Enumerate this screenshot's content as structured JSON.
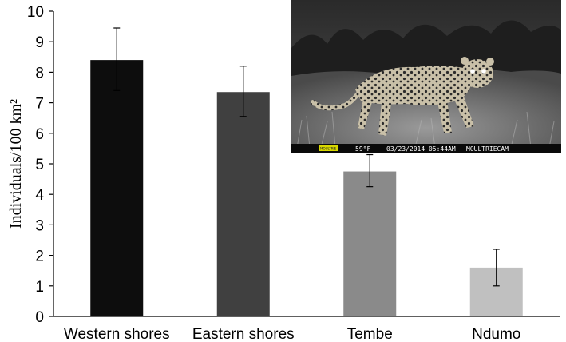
{
  "chart_data": {
    "type": "bar",
    "categories": [
      "Western shores",
      "Eastern shores",
      "Tembe",
      "Ndumo"
    ],
    "values": [
      8.4,
      7.35,
      4.75,
      1.6
    ],
    "errors": [
      {
        "low": 7.4,
        "high": 9.45
      },
      {
        "low": 6.55,
        "high": 8.2
      },
      {
        "low": 4.25,
        "high": 5.3
      },
      {
        "low": 1.0,
        "high": 2.2
      }
    ],
    "bar_colors": [
      "#0d0d0d",
      "#404040",
      "#8a8a8a",
      "#c0c0c0"
    ],
    "ylabel": "Individuals/100 km²",
    "ylim": [
      0,
      10
    ],
    "yticks": [
      0,
      1,
      2,
      3,
      4,
      5,
      6,
      7,
      8,
      9,
      10
    ],
    "grid": false,
    "legend": "none"
  },
  "inset_photo": {
    "description_icon": "camera-trap-leopard-photo",
    "overlay": {
      "brand_badge": "MOULTRIE",
      "temperature": "59°F",
      "datetime": "03/23/2014 05:44AM",
      "camera": "MOULTRIECAM"
    }
  }
}
